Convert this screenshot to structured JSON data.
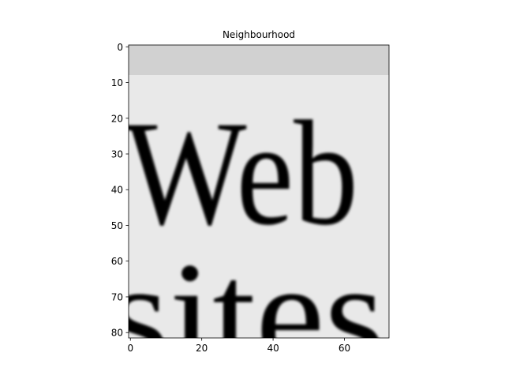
{
  "chart_data": {
    "type": "image",
    "title": "Neighbourhood",
    "image_text": [
      "Web",
      "sites"
    ],
    "xlim": [
      -0.5,
      72.5
    ],
    "ylim": [
      81.5,
      -0.5
    ],
    "xticks": [
      0,
      20,
      40,
      60
    ],
    "yticks": [
      0,
      10,
      20,
      30,
      40,
      50,
      60,
      70,
      80
    ]
  }
}
